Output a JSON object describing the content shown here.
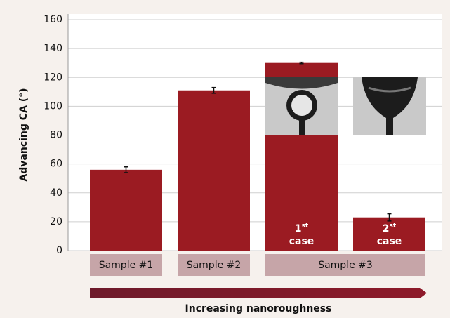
{
  "chart_data": {
    "type": "bar",
    "ylabel": "Advancing CA (°)",
    "xlabel": "Increasing nanoroughness",
    "categories": [
      "Sample #1",
      "Sample #2",
      "Sample #3",
      null
    ],
    "values": [
      56,
      111,
      130,
      23
    ],
    "errors": [
      2,
      2,
      0.5,
      2.5
    ],
    "inner_labels": [
      null,
      null,
      [
        "1",
        "st",
        "case"
      ],
      [
        "2",
        "st",
        "case"
      ]
    ],
    "color": "#9b1b22",
    "ylim": [
      0,
      160
    ],
    "yticks": [
      0,
      20,
      40,
      60,
      80,
      100,
      120,
      140,
      160
    ],
    "grid": true
  }
}
